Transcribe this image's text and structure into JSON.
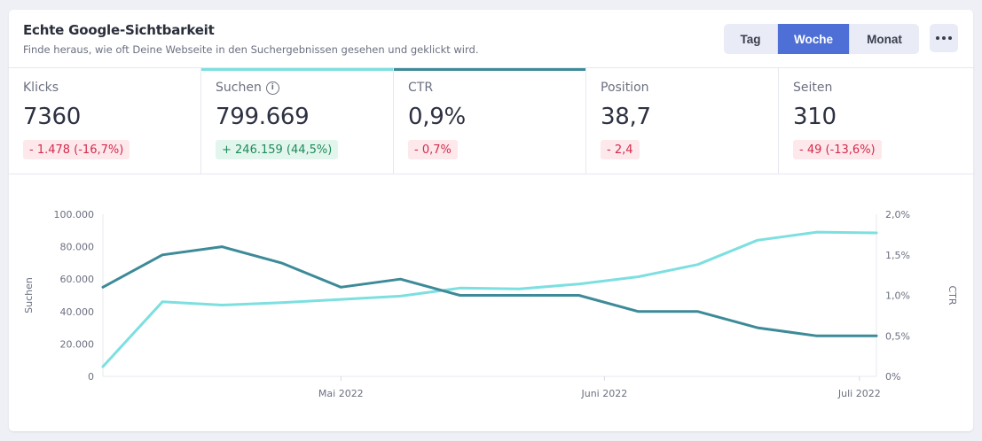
{
  "header": {
    "title": "Echte Google-Sichtbarkeit",
    "subtitle": "Finde heraus, wie oft Deine Webseite in den Suchergebnissen gesehen und geklickt wird.",
    "period_buttons": [
      {
        "label": "Tag",
        "active": false
      },
      {
        "label": "Woche",
        "active": true
      },
      {
        "label": "Monat",
        "active": false
      }
    ],
    "more_icon": "more-horizontal-icon"
  },
  "metrics": [
    {
      "label": "Klicks",
      "value": "7360",
      "change": "- 1.478 (-16,7%)",
      "trend": "neg",
      "has_info": false,
      "highlight": ""
    },
    {
      "label": "Suchen",
      "value": "799.669",
      "change": "+ 246.159 (44,5%)",
      "trend": "pos",
      "has_info": true,
      "highlight": "#7ddfe0"
    },
    {
      "label": "CTR",
      "value": "0,9%",
      "change": "- 0,7%",
      "trend": "neg",
      "has_info": false,
      "highlight": "#3d8a98"
    },
    {
      "label": "Position",
      "value": "38,7",
      "change": "- 2,4",
      "trend": "neg",
      "has_info": false,
      "highlight": ""
    },
    {
      "label": "Seiten",
      "value": "310",
      "change": "- 49 (-13,6%)",
      "trend": "neg",
      "has_info": false,
      "highlight": ""
    }
  ],
  "chart_data": {
    "type": "line",
    "x": [
      "2022-04-03",
      "2022-04-10",
      "2022-04-17",
      "2022-04-24",
      "2022-05-01",
      "2022-05-08",
      "2022-05-15",
      "2022-05-22",
      "2022-05-29",
      "2022-06-05",
      "2022-06-12",
      "2022-06-19",
      "2022-06-26",
      "2022-07-03"
    ],
    "x_ticks": [
      "Mai 2022",
      "Juni 2022",
      "Juli 2022"
    ],
    "left_axis": {
      "label": "Suchen",
      "ticks": [
        "0",
        "20.000",
        "40.000",
        "60.000",
        "80.000",
        "100.000"
      ],
      "ylim": [
        0,
        100000
      ]
    },
    "right_axis": {
      "label": "CTR",
      "ticks": [
        "0%",
        "0,5%",
        "1,0%",
        "1,5%",
        "2,0%"
      ],
      "ylim": [
        0,
        2.0
      ]
    },
    "series": [
      {
        "name": "Suchen",
        "axis": "left",
        "color": "#7ddfe0",
        "values": [
          6000,
          46000,
          44000,
          45500,
          47500,
          49500,
          54500,
          54000,
          57000,
          61500,
          69000,
          84000,
          89000,
          88500
        ]
      },
      {
        "name": "CTR",
        "axis": "right",
        "color": "#3d8a98",
        "values": [
          1.1,
          1.5,
          1.6,
          1.4,
          1.1,
          1.2,
          1.0,
          1.0,
          1.0,
          0.8,
          0.8,
          0.6,
          0.5,
          0.5
        ]
      }
    ],
    "grid": true
  }
}
